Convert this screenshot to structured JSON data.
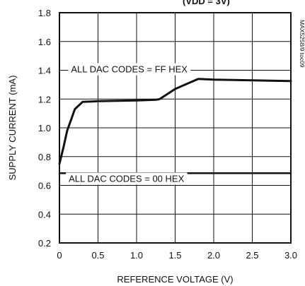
{
  "chart_data": {
    "type": "line",
    "title": "",
    "xlabel": "REFERENCE VOLTAGE (V)",
    "ylabel": "SUPPLY CURRENT (mA)",
    "xlim": [
      0,
      3.0
    ],
    "ylim": [
      0.2,
      1.8
    ],
    "x_ticks": [
      "0",
      "0.5",
      "1.0",
      "1.5",
      "2.0",
      "2.5",
      "3.0"
    ],
    "y_ticks": [
      "0.2",
      "0.4",
      "0.6",
      "0.8",
      "1.0",
      "1.2",
      "1.4",
      "1.6",
      "1.8"
    ],
    "grid": true,
    "title_fragment": "(V<sub>DD</sub> = 3V)",
    "series": [
      {
        "name": "ALL DAC CODES = FF HEX",
        "x": [
          0.0,
          0.05,
          0.1,
          0.2,
          0.3,
          0.5,
          1.0,
          1.25,
          1.3,
          1.5,
          1.8,
          2.0,
          2.5,
          3.0
        ],
        "y": [
          0.75,
          0.86,
          0.98,
          1.13,
          1.18,
          1.185,
          1.19,
          1.195,
          1.2,
          1.27,
          1.34,
          1.335,
          1.33,
          1.325
        ]
      },
      {
        "name": "ALL DAC CODES = 00 HEX",
        "x": [
          0.0,
          3.0
        ],
        "y": [
          0.685,
          0.685
        ]
      }
    ],
    "annotations": [
      "ALL DAC CODES = FF HEX",
      "ALL DAC CODES = 00 HEX"
    ],
    "watermark": "MAX5258/9 toc09",
    "line_color": "#111111"
  }
}
